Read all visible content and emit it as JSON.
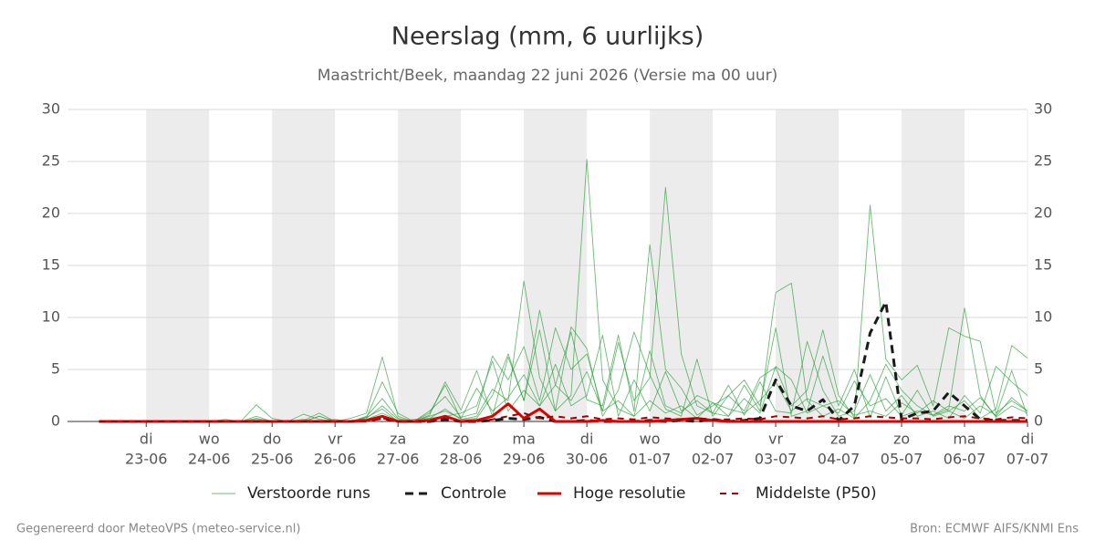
{
  "chart_data": {
    "type": "line",
    "title": "Neerslag (mm, 6 uurlijks)",
    "subtitle": "Maastricht/Beek, maandag 22 juni 2026 (Versie ma 00 uur)",
    "footer_left": "Gegenereerd door MeteoVPS (meteo-service.nl)",
    "footer_right": "Bron: ECMWF AIFS/KNMI Ens",
    "xlim": [
      -2,
      59
    ],
    "ylim": [
      0,
      30
    ],
    "yticks": [
      0,
      5,
      10,
      15,
      20,
      25,
      30
    ],
    "grid": true,
    "shade_alternate_days": true,
    "xticks": [
      {
        "value": 3,
        "label": "di",
        "date": "23-06"
      },
      {
        "value": 7,
        "label": "wo",
        "date": "24-06"
      },
      {
        "value": 11,
        "label": "do",
        "date": "25-06"
      },
      {
        "value": 15,
        "label": "vr",
        "date": "26-06"
      },
      {
        "value": 19,
        "label": "za",
        "date": "27-06"
      },
      {
        "value": 23,
        "label": "zo",
        "date": "28-06"
      },
      {
        "value": 27,
        "label": "ma",
        "date": "29-06"
      },
      {
        "value": 31,
        "label": "di",
        "date": "30-06"
      },
      {
        "value": 35,
        "label": "wo",
        "date": "01-07"
      },
      {
        "value": 39,
        "label": "do",
        "date": "02-07"
      },
      {
        "value": 43,
        "label": "vr",
        "date": "03-07"
      },
      {
        "value": 47,
        "label": "za",
        "date": "04-07"
      },
      {
        "value": 51,
        "label": "zo",
        "date": "05-07"
      },
      {
        "value": 55,
        "label": "ma",
        "date": "06-07"
      },
      {
        "value": 59,
        "label": "di",
        "date": "07-07"
      }
    ],
    "series": [
      {
        "name": "Verstoorde runs",
        "color": "#2e9e3a",
        "style": "thin",
        "members": [
          [
            0,
            0,
            0,
            0,
            0,
            0,
            0,
            0,
            0,
            0,
            0.2,
            0,
            0,
            0,
            0,
            0,
            0.3,
            0.8,
            6.2,
            0.5,
            0,
            0.3,
            1.2,
            0.2,
            0.5,
            3.1,
            2.0,
            13.5,
            4.2,
            1.0,
            2.5,
            25.2,
            4.0,
            1.2,
            0.5,
            2.0,
            0.8,
            1.5,
            0.3,
            1.8,
            0.5,
            3.5,
            1.0,
            12.4,
            13.3,
            2.0,
            0.5,
            1.2,
            0.3,
            2.0,
            5.5,
            3.0,
            1.5,
            0.6,
            1.2,
            10.9,
            2.5,
            0.4,
            1.5,
            0.8
          ],
          [
            0,
            0,
            0,
            0,
            0.1,
            0,
            0,
            0,
            0,
            0,
            1.6,
            0.3,
            0,
            0,
            0.5,
            0,
            0,
            0.4,
            3.8,
            0.8,
            0,
            0.6,
            3.8,
            1.1,
            4.9,
            0.5,
            6.2,
            2.0,
            10.7,
            3.5,
            8.6,
            2.1,
            1.5,
            8.3,
            1.0,
            17.0,
            5.0,
            3.2,
            0.6,
            1.5,
            2.5,
            1.0,
            4.2,
            5.2,
            1.5,
            3.0,
            8.8,
            2.5,
            0.4,
            20.8,
            6.0,
            4.0,
            5.4,
            1.5,
            9.0,
            8.2,
            7.7,
            0.8,
            2.0,
            1.0
          ],
          [
            0,
            0,
            0,
            0,
            0,
            0,
            0,
            0,
            0.2,
            0,
            0.5,
            0,
            0,
            0.7,
            0.2,
            0,
            0,
            0.5,
            2.2,
            0.3,
            0,
            1.0,
            2.4,
            0.4,
            0.8,
            6.3,
            4.0,
            7.2,
            2.0,
            9.0,
            5.0,
            6.5,
            1.0,
            7.6,
            2.0,
            4.2,
            22.5,
            6.5,
            1.5,
            0.8,
            3.5,
            0.6,
            3.8,
            1.0,
            0.8,
            7.7,
            3.0,
            0.5,
            1.0,
            4.5,
            1.0,
            2.5,
            0.5,
            1.0,
            0.3,
            2.5,
            0.8,
            5.3,
            3.8,
            2.5
          ],
          [
            0,
            0,
            0,
            0,
            0,
            0.1,
            0,
            0,
            0,
            0,
            0.3,
            0,
            0,
            0.1,
            0.8,
            0,
            0,
            0.3,
            1.5,
            0.2,
            0,
            0.8,
            3.5,
            0.2,
            0.3,
            2.5,
            6.5,
            2.0,
            8.8,
            1.0,
            9.1,
            7.0,
            0.5,
            3.0,
            8.6,
            4.5,
            1.2,
            0.5,
            6.0,
            0.5,
            2.5,
            4.0,
            1.5,
            9.0,
            0.5,
            1.0,
            6.3,
            1.5,
            5.0,
            0.4,
            4.3,
            0.6,
            3.0,
            0.5,
            1.0,
            2.0,
            0.3,
            1.2,
            7.3,
            6.1
          ],
          [
            0,
            0,
            0,
            0,
            0,
            0,
            0,
            0,
            0,
            0,
            0,
            0,
            0,
            0.2,
            0,
            0.2,
            0,
            0.2,
            0.8,
            0.1,
            0,
            0.5,
            1.0,
            0.3,
            3.2,
            1.0,
            2.3,
            4.5,
            1.5,
            3.5,
            2.0,
            4.8,
            1.0,
            2.0,
            0.5,
            6.8,
            1.5,
            0.8,
            2.5,
            1.8,
            1.2,
            0.8,
            2.0,
            3.8,
            1.0,
            2.2,
            1.5,
            0.8,
            3.9,
            1.5,
            2.2,
            0.5,
            1.0,
            0.6,
            1.5,
            1.0,
            2.3,
            0.5,
            2.3,
            1.0
          ],
          [
            0,
            0,
            0,
            0,
            0,
            0,
            0,
            0,
            0,
            0,
            0,
            0,
            0.1,
            0,
            0.5,
            0,
            0,
            0.4,
            1.2,
            0,
            0.2,
            0.3,
            0.5,
            0.8,
            1.5,
            5.8,
            1.0,
            3.0,
            1.5,
            5.5,
            1.5,
            2.5,
            8.3,
            0.5,
            4.0,
            1.0,
            4.8,
            1.0,
            2.0,
            0.8,
            0.5,
            2.2,
            0.8,
            5.3,
            4.0,
            0.8,
            1.5,
            2.0,
            0.6,
            1.0,
            0.5,
            1.8,
            0.8,
            2.0,
            1.0,
            0.3,
            1.5,
            0.6,
            4.9,
            0.5
          ]
        ]
      },
      {
        "name": "Controle",
        "color": "#1a1a1a",
        "style": "dashed",
        "values": [
          0,
          0,
          0,
          0,
          0,
          0,
          0,
          0,
          0,
          0,
          0,
          0,
          0,
          0,
          0,
          0,
          0,
          0.1,
          0.3,
          0,
          0,
          0,
          0.2,
          0,
          0,
          0.1,
          0.3,
          0.2,
          0.4,
          0,
          0,
          0.1,
          0,
          0,
          0,
          0.1,
          0,
          0.1,
          0,
          0.2,
          0,
          0.1,
          0.3,
          4.0,
          1.5,
          1.0,
          2.1,
          0.1,
          1.5,
          8.5,
          11.5,
          0.2,
          0.8,
          1.0,
          2.8,
          1.5,
          0.2,
          0.1,
          0.1,
          0.1
        ]
      },
      {
        "name": "Hoge resolutie",
        "color": "#e00000",
        "style": "thick",
        "values": [
          0,
          0,
          0,
          0,
          0,
          0,
          0,
          0,
          0,
          0,
          0,
          0,
          0,
          0,
          0,
          0,
          0,
          0.1,
          0.5,
          0,
          0,
          0.1,
          0.5,
          0,
          0.1,
          0.5,
          1.7,
          0.3,
          1.2,
          0,
          0,
          0,
          0.1,
          0,
          0,
          0,
          0.1,
          0.2,
          0.3,
          0.1,
          0,
          0,
          0,
          0,
          0,
          0,
          0,
          0,
          0,
          0,
          0,
          0,
          0,
          0,
          0,
          0,
          0,
          0,
          0,
          0
        ]
      },
      {
        "name": "Middelste (P50)",
        "color": "#a00000",
        "style": "dashed-thin",
        "values": [
          0,
          0,
          0,
          0,
          0,
          0,
          0,
          0,
          0,
          0,
          0,
          0,
          0,
          0,
          0,
          0,
          0,
          0,
          0.3,
          0,
          0,
          0,
          0.3,
          0,
          0,
          0.2,
          0.5,
          0.8,
          0.3,
          0.5,
          0.3,
          0.5,
          0.2,
          0.3,
          0.2,
          0.4,
          0.3,
          0.2,
          0.3,
          0.2,
          0.2,
          0.3,
          0.2,
          0.5,
          0.4,
          0.3,
          0.5,
          0.2,
          0.3,
          0.5,
          0.4,
          0.3,
          0.3,
          0.2,
          0.4,
          0.5,
          0.3,
          0.2,
          0.4,
          0.3
        ]
      }
    ]
  }
}
